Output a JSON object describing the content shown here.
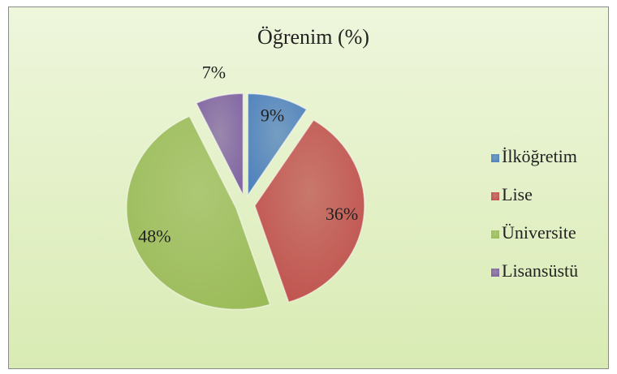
{
  "chart_data": {
    "type": "pie",
    "title": "Öğrenim (%)",
    "categories": [
      "İlköğretim",
      "Lise",
      "Üniversite",
      "Lisansüstü"
    ],
    "values": [
      9,
      36,
      48,
      7
    ],
    "value_labels": [
      "9%",
      "36%",
      "48%",
      "7%"
    ],
    "colors": [
      "#4f81bd",
      "#c0504d",
      "#9bbb59",
      "#8064a2"
    ],
    "legend": "right"
  }
}
